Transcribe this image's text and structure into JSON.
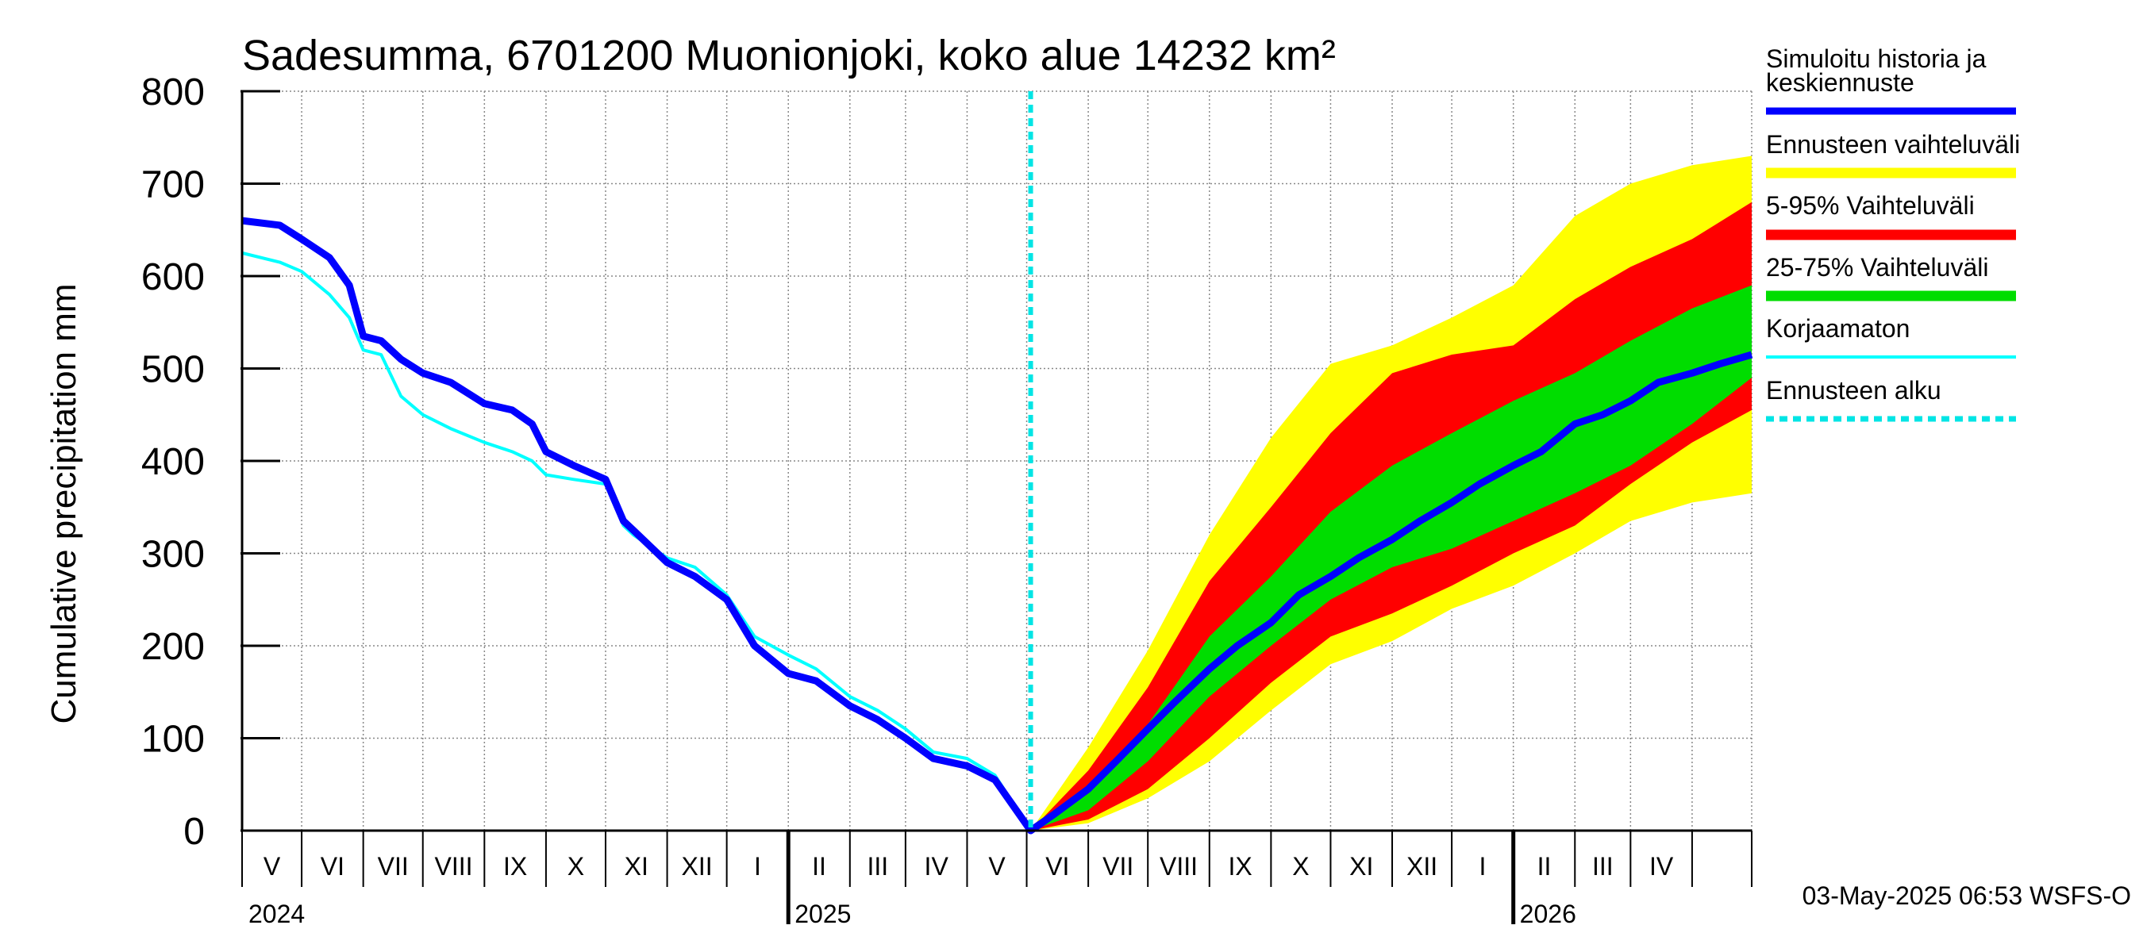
{
  "chart_data": {
    "type": "area",
    "title": "Sadesumma, 6701200 Muonionjoki, koko alue 14232 km²",
    "ylabel": "Cumulative precipitation   mm",
    "xlabel": "",
    "ylim": [
      0,
      800
    ],
    "yticks": [
      "0",
      "100",
      "200",
      "300",
      "400",
      "500",
      "600",
      "700",
      "800"
    ],
    "xlim": [
      "2024-04-01",
      "2026-05-01"
    ],
    "month_labels": [
      "V",
      "VI",
      "VII",
      "VIII",
      "IX",
      "X",
      "XI",
      "XII",
      "I",
      "II",
      "III",
      "IV",
      "V",
      "VI",
      "VII",
      "VIII",
      "IX",
      "X",
      "XI",
      "XII",
      "I",
      "II",
      "III",
      "IV"
    ],
    "year_labels": [
      "2024",
      "2025",
      "2026"
    ],
    "forecast_start": "2025-05-03",
    "grid": true,
    "legend_placement": "right",
    "colors": {
      "simulated": "#0000ff",
      "range_full": "#ffff00",
      "range_5_95": "#ff0000",
      "range_25_75": "#00dd00",
      "uncorrected": "#00ffff",
      "forecast_start": "#00e5e5"
    },
    "series": [
      {
        "name": "Simuloitu historia ja keskiennuste",
        "x": [
          "2024-04-01",
          "2024-04-20",
          "2024-05-01",
          "2024-05-15",
          "2024-05-25",
          "2024-06-01",
          "2024-06-10",
          "2024-06-20",
          "2024-07-01",
          "2024-07-15",
          "2024-08-01",
          "2024-08-15",
          "2024-08-25",
          "2024-09-01",
          "2024-09-15",
          "2024-10-01",
          "2024-10-10",
          "2024-10-15",
          "2024-11-01",
          "2024-11-15",
          "2024-12-01",
          "2024-12-15",
          "2025-01-01",
          "2025-01-15",
          "2025-02-01",
          "2025-02-15",
          "2025-03-01",
          "2025-03-15",
          "2025-04-01",
          "2025-04-15",
          "2025-05-03",
          "2025-05-15",
          "2025-06-01",
          "2025-06-15",
          "2025-07-01",
          "2025-07-15",
          "2025-08-01",
          "2025-08-15",
          "2025-09-01",
          "2025-09-15",
          "2025-10-01",
          "2025-10-15",
          "2025-11-01",
          "2025-11-15",
          "2025-12-01",
          "2025-12-15",
          "2026-01-01",
          "2026-01-15",
          "2026-02-01",
          "2026-02-15",
          "2026-03-01",
          "2026-03-15",
          "2026-04-01",
          "2026-04-15",
          "2026-05-01"
        ],
        "values": [
          660,
          655,
          640,
          620,
          590,
          535,
          530,
          510,
          495,
          485,
          462,
          455,
          440,
          410,
          395,
          380,
          335,
          325,
          290,
          275,
          250,
          200,
          170,
          162,
          135,
          120,
          100,
          78,
          70,
          55,
          0,
          18,
          45,
          75,
          110,
          140,
          175,
          200,
          225,
          255,
          275,
          295,
          315,
          335,
          355,
          375,
          395,
          410,
          440,
          450,
          465,
          485,
          495,
          505,
          515
        ]
      },
      {
        "name": "Korjaamaton",
        "x": [
          "2024-04-01",
          "2024-04-20",
          "2024-05-01",
          "2024-05-15",
          "2024-05-25",
          "2024-06-01",
          "2024-06-10",
          "2024-06-20",
          "2024-07-01",
          "2024-07-15",
          "2024-08-01",
          "2024-08-15",
          "2024-08-25",
          "2024-09-01",
          "2024-09-15",
          "2024-10-01",
          "2024-10-10",
          "2024-10-15",
          "2024-11-01",
          "2024-11-15",
          "2024-12-01",
          "2024-12-15",
          "2025-01-01",
          "2025-01-15",
          "2025-02-01",
          "2025-02-15",
          "2025-03-01",
          "2025-03-15",
          "2025-04-01",
          "2025-04-15",
          "2025-05-03"
        ],
        "values": [
          625,
          615,
          605,
          580,
          555,
          520,
          515,
          470,
          450,
          435,
          420,
          410,
          400,
          385,
          380,
          375,
          330,
          320,
          295,
          285,
          255,
          210,
          190,
          175,
          145,
          130,
          110,
          85,
          78,
          60,
          0
        ]
      }
    ],
    "bands": [
      {
        "name": "Ennusteen vaihteluväli",
        "x": [
          "2025-05-03",
          "2025-06-01",
          "2025-07-01",
          "2025-08-01",
          "2025-09-01",
          "2025-10-01",
          "2025-11-01",
          "2025-12-01",
          "2026-01-01",
          "2026-02-01",
          "2026-03-01",
          "2026-04-01",
          "2026-05-01"
        ],
        "lower": [
          0,
          8,
          35,
          75,
          130,
          180,
          205,
          240,
          265,
          300,
          335,
          355,
          365
        ],
        "upper": [
          0,
          90,
          195,
          320,
          425,
          505,
          525,
          555,
          590,
          665,
          700,
          720,
          730
        ]
      },
      {
        "name": "5-95% Vaihteluväli",
        "x": [
          "2025-05-03",
          "2025-06-01",
          "2025-07-01",
          "2025-08-01",
          "2025-09-01",
          "2025-10-01",
          "2025-11-01",
          "2025-12-01",
          "2026-01-01",
          "2026-02-01",
          "2026-03-01",
          "2026-04-01",
          "2026-05-01"
        ],
        "lower": [
          0,
          12,
          45,
          100,
          160,
          210,
          235,
          265,
          300,
          330,
          375,
          420,
          455
        ],
        "upper": [
          0,
          65,
          155,
          270,
          350,
          430,
          495,
          515,
          525,
          575,
          610,
          640,
          680
        ]
      },
      {
        "name": "25-75% Vaihteluväli",
        "x": [
          "2025-05-03",
          "2025-06-01",
          "2025-07-01",
          "2025-08-01",
          "2025-09-01",
          "2025-10-01",
          "2025-11-01",
          "2025-12-01",
          "2026-01-01",
          "2026-02-01",
          "2026-03-01",
          "2026-04-01",
          "2026-05-01"
        ],
        "lower": [
          0,
          22,
          75,
          145,
          200,
          250,
          285,
          305,
          335,
          365,
          395,
          440,
          490
        ],
        "upper": [
          0,
          40,
          115,
          210,
          275,
          345,
          395,
          430,
          465,
          495,
          530,
          565,
          590
        ]
      }
    ],
    "legend": [
      {
        "label": "Simuloitu historia ja keskiennuste",
        "color": "#0000ff",
        "style": "line"
      },
      {
        "label": "Ennusteen vaihteluväli",
        "color": "#ffff00",
        "style": "band"
      },
      {
        "label": "5-95% Vaihteluväli",
        "color": "#ff0000",
        "style": "band"
      },
      {
        "label": "25-75% Vaihteluväli",
        "color": "#00dd00",
        "style": "band"
      },
      {
        "label": "Korjaamaton",
        "color": "#00ffff",
        "style": "thin"
      },
      {
        "label": "Ennusteen alku",
        "color": "#00e5e5",
        "style": "dashed"
      }
    ],
    "footer": "03-May-2025 06:53 WSFS-O"
  }
}
